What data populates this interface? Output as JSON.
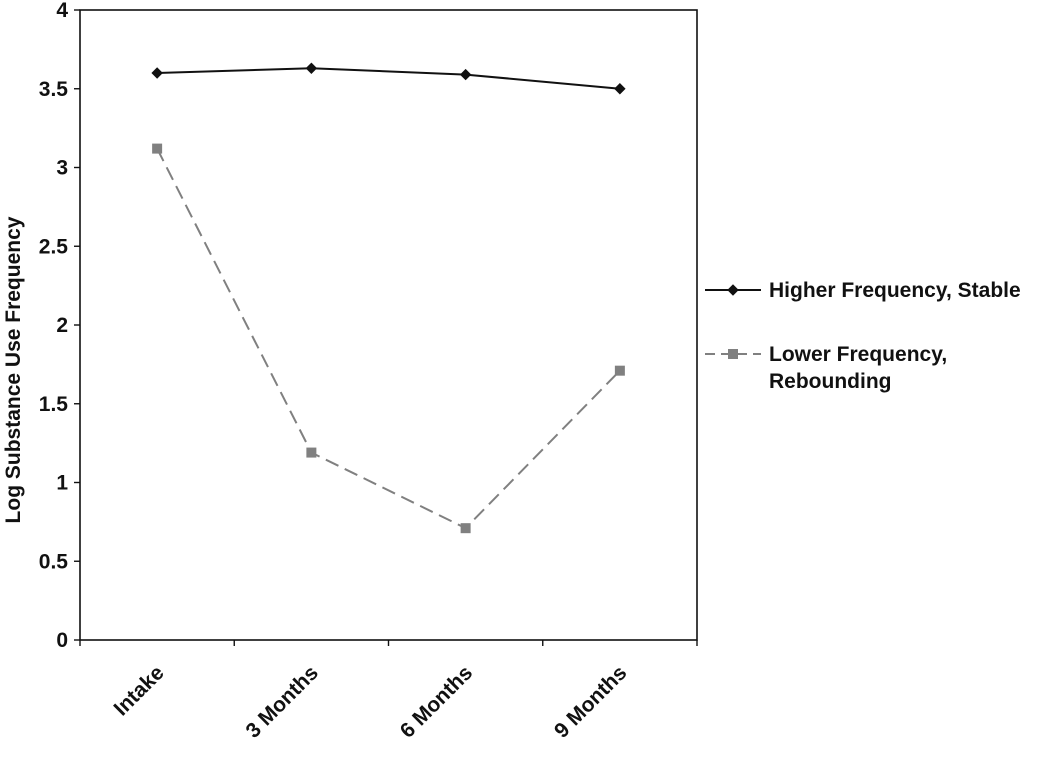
{
  "chart_data": {
    "type": "line",
    "title": "",
    "xlabel": "",
    "ylabel": "Log Substance Use Frequency",
    "categories": [
      "Intake",
      "3 Months",
      "6 Months",
      "9 Months"
    ],
    "ylim": [
      0,
      4
    ],
    "yticks": [
      "0",
      "0.5",
      "1",
      "1.5",
      "2",
      "2.5",
      "3",
      "3.5",
      "4"
    ],
    "grid": false,
    "legend_position": "right",
    "series": [
      {
        "name": "Higher Frequency, Stable",
        "name_lines": [
          "Higher Frequency, Stable"
        ],
        "values": [
          3.6,
          3.63,
          3.59,
          3.5
        ],
        "color": "#111111",
        "marker": "diamond",
        "line_style": "solid"
      },
      {
        "name": "Lower Frequency, Rebounding",
        "name_lines": [
          "Lower Frequency,",
          "Rebounding"
        ],
        "values": [
          3.12,
          1.19,
          0.71,
          1.71
        ],
        "color": "#808080",
        "marker": "square",
        "line_style": "dashed"
      }
    ]
  }
}
